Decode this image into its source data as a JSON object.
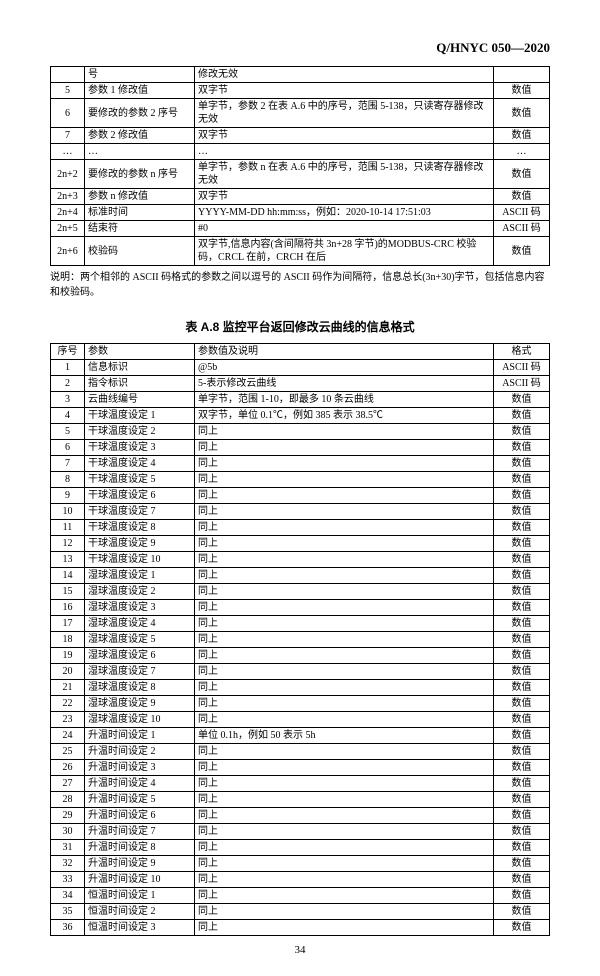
{
  "docHeader": "Q/HNYC 050—2020",
  "pageNumber": "34",
  "table1": {
    "rows": [
      {
        "seq": "",
        "param": "号",
        "desc": "修改无效",
        "fmt": ""
      },
      {
        "seq": "5",
        "param": "参数 1 修改值",
        "desc": "双字节",
        "fmt": "数值"
      },
      {
        "seq": "6",
        "param": "要修改的参数 2 序号",
        "desc": "单字节，参数 2 在表 A.6 中的序号，范围 5-138，只读寄存器修改无效",
        "fmt": "数值"
      },
      {
        "seq": "7",
        "param": "参数 2 修改值",
        "desc": "双字节",
        "fmt": "数值"
      },
      {
        "seq": "…",
        "param": "…",
        "desc": "…",
        "fmt": "…"
      },
      {
        "seq": "2n+2",
        "param": "要修改的参数 n 序号",
        "desc": "单字节，参数 n 在表 A.6 中的序号，范围 5-138，只读寄存器修改无效",
        "fmt": "数值"
      },
      {
        "seq": "2n+3",
        "param": "参数 n 修改值",
        "desc": "双字节",
        "fmt": "数值"
      },
      {
        "seq": "2n+4",
        "param": "标准时间",
        "desc": "YYYY-MM-DD hh:mm:ss，例如：2020-10-14 17:51:03",
        "fmt": "ASCII 码"
      },
      {
        "seq": "2n+5",
        "param": "结束符",
        "desc": "#0",
        "fmt": "ASCII 码"
      },
      {
        "seq": "2n+6",
        "param": "校验码",
        "desc": "双字节,信息内容(含间隔符共 3n+28 字节)的MODBUS-CRC 校验码，CRCL 在前，CRCH 在后",
        "fmt": "数值"
      }
    ]
  },
  "noteText": "说明：两个相邻的 ASCII 码格式的参数之间以逗号的 ASCII 码作为间隔符，信息总长(3n+30)字节，包括信息内容和校验码。",
  "table2": {
    "caption": "表 A.8 监控平台返回修改云曲线的信息格式",
    "headers": {
      "seq": "序号",
      "param": "参数",
      "desc": "参数值及说明",
      "fmt": "格式"
    },
    "rows": [
      {
        "seq": "1",
        "param": "信息标识",
        "desc": "@5b",
        "fmt": "ASCII 码"
      },
      {
        "seq": "2",
        "param": "指令标识",
        "desc": "5-表示修改云曲线",
        "fmt": "ASCII 码"
      },
      {
        "seq": "3",
        "param": "云曲线编号",
        "desc": "单字节，范围 1-10，即最多 10 条云曲线",
        "fmt": "数值"
      },
      {
        "seq": "4",
        "param": "干球温度设定 1",
        "desc": "双字节，单位 0.1℃，例如 385 表示 38.5℃",
        "fmt": "数值"
      },
      {
        "seq": "5",
        "param": "干球温度设定 2",
        "desc": "同上",
        "fmt": "数值"
      },
      {
        "seq": "6",
        "param": "干球温度设定 3",
        "desc": "同上",
        "fmt": "数值"
      },
      {
        "seq": "7",
        "param": "干球温度设定 4",
        "desc": "同上",
        "fmt": "数值"
      },
      {
        "seq": "8",
        "param": "干球温度设定 5",
        "desc": "同上",
        "fmt": "数值"
      },
      {
        "seq": "9",
        "param": "干球温度设定 6",
        "desc": "同上",
        "fmt": "数值"
      },
      {
        "seq": "10",
        "param": "干球温度设定 7",
        "desc": "同上",
        "fmt": "数值"
      },
      {
        "seq": "11",
        "param": "干球温度设定 8",
        "desc": "同上",
        "fmt": "数值"
      },
      {
        "seq": "12",
        "param": "干球温度设定 9",
        "desc": "同上",
        "fmt": "数值"
      },
      {
        "seq": "13",
        "param": "干球温度设定 10",
        "desc": "同上",
        "fmt": "数值"
      },
      {
        "seq": "14",
        "param": "湿球温度设定 1",
        "desc": "同上",
        "fmt": "数值"
      },
      {
        "seq": "15",
        "param": "湿球温度设定 2",
        "desc": "同上",
        "fmt": "数值"
      },
      {
        "seq": "16",
        "param": "湿球温度设定 3",
        "desc": "同上",
        "fmt": "数值"
      },
      {
        "seq": "17",
        "param": "湿球温度设定 4",
        "desc": "同上",
        "fmt": "数值"
      },
      {
        "seq": "18",
        "param": "湿球温度设定 5",
        "desc": "同上",
        "fmt": "数值"
      },
      {
        "seq": "19",
        "param": "湿球温度设定 6",
        "desc": "同上",
        "fmt": "数值"
      },
      {
        "seq": "20",
        "param": "湿球温度设定 7",
        "desc": "同上",
        "fmt": "数值"
      },
      {
        "seq": "21",
        "param": "湿球温度设定 8",
        "desc": "同上",
        "fmt": "数值"
      },
      {
        "seq": "22",
        "param": "湿球温度设定 9",
        "desc": "同上",
        "fmt": "数值"
      },
      {
        "seq": "23",
        "param": "湿球温度设定 10",
        "desc": "同上",
        "fmt": "数值"
      },
      {
        "seq": "24",
        "param": "升温时间设定 1",
        "desc": "单位 0.1h，例如 50 表示 5h",
        "fmt": "数值"
      },
      {
        "seq": "25",
        "param": "升温时间设定 2",
        "desc": "同上",
        "fmt": "数值"
      },
      {
        "seq": "26",
        "param": "升温时间设定 3",
        "desc": "同上",
        "fmt": "数值"
      },
      {
        "seq": "27",
        "param": "升温时间设定 4",
        "desc": "同上",
        "fmt": "数值"
      },
      {
        "seq": "28",
        "param": "升温时间设定 5",
        "desc": "同上",
        "fmt": "数值"
      },
      {
        "seq": "29",
        "param": "升温时间设定 6",
        "desc": "同上",
        "fmt": "数值"
      },
      {
        "seq": "30",
        "param": "升温时间设定 7",
        "desc": "同上",
        "fmt": "数值"
      },
      {
        "seq": "31",
        "param": "升温时间设定 8",
        "desc": "同上",
        "fmt": "数值"
      },
      {
        "seq": "32",
        "param": "升温时间设定 9",
        "desc": "同上",
        "fmt": "数值"
      },
      {
        "seq": "33",
        "param": "升温时间设定 10",
        "desc": "同上",
        "fmt": "数值"
      },
      {
        "seq": "34",
        "param": "恒温时间设定 1",
        "desc": "同上",
        "fmt": "数值"
      },
      {
        "seq": "35",
        "param": "恒温时间设定 2",
        "desc": "同上",
        "fmt": "数值"
      },
      {
        "seq": "36",
        "param": "恒温时间设定 3",
        "desc": "同上",
        "fmt": "数值"
      }
    ]
  }
}
